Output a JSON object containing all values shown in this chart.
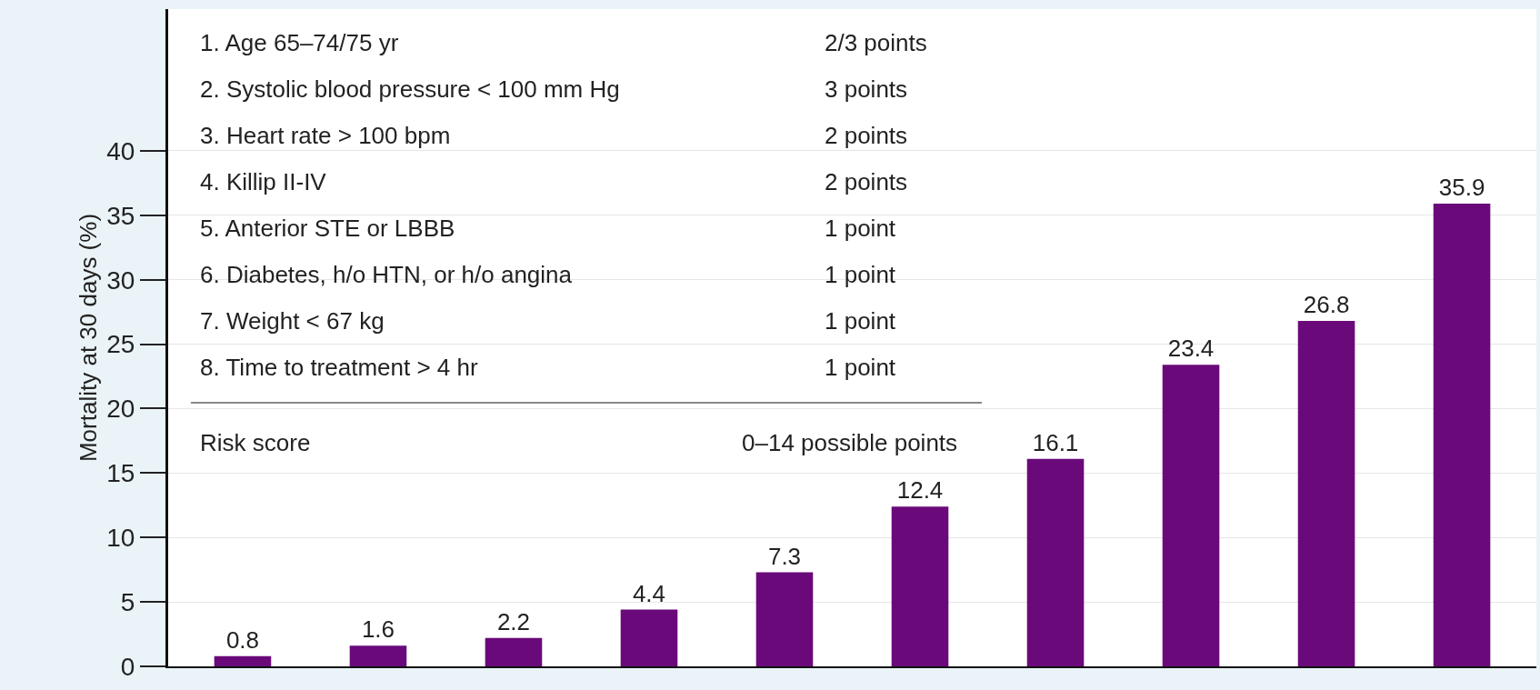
{
  "chart_data": {
    "type": "bar",
    "ylabel": "Mortality at 30 days (%)",
    "categories": [
      null,
      null,
      null,
      null,
      null,
      null,
      null,
      null,
      null,
      null
    ],
    "values": [
      0.8,
      1.6,
      2.2,
      4.4,
      7.3,
      12.4,
      16.1,
      23.4,
      26.8,
      35.9
    ],
    "color": "#6a0a7a",
    "data_labels": true,
    "ylim": [
      0,
      51
    ],
    "yticks": [
      0,
      5,
      10,
      15,
      20,
      25,
      30,
      35,
      40
    ],
    "grid": "y",
    "annotations": [
      "1. Age 65–74/75 yr",
      "2/3 points",
      "2. Systolic blood pressure < 100 mm Hg",
      "3 points",
      "3. Heart rate > 100 bpm",
      "2 points",
      "4. Killip II-IV",
      "2 points",
      "5. Anterior STE or LBBB",
      "1 point",
      "6. Diabetes, h/o HTN, or h/o angina",
      "1 point",
      "7. Weight < 67 kg",
      "1 point",
      "8. Time to treatment > 4 hr",
      "1 point",
      "Risk score",
      "0–14 possible points"
    ]
  }
}
